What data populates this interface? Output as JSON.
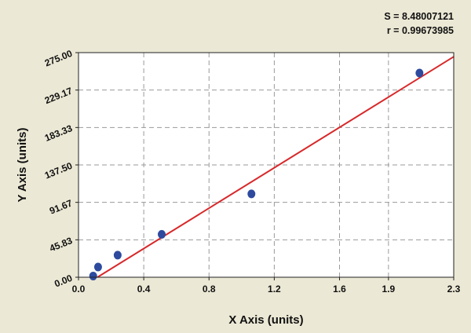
{
  "stats": {
    "s_line": "S = 8.48007121",
    "r_line": "r = 0.99673985"
  },
  "chart_data": {
    "type": "scatter",
    "xlabel": "X Axis (units)",
    "ylabel": "Y Axis (units)",
    "xlim": [
      0.0,
      2.3
    ],
    "ylim": [
      0.0,
      275.0
    ],
    "x_ticks": [
      0.0,
      0.4,
      0.8,
      1.2,
      1.6,
      1.9,
      2.3
    ],
    "x_tick_labels": [
      "0.0",
      "0.4",
      "0.8",
      "1.2",
      "1.6",
      "1.9",
      "2.3"
    ],
    "y_ticks": [
      0.0,
      45.83,
      91.67,
      137.5,
      183.33,
      229.17,
      275.0
    ],
    "y_tick_labels": [
      "0.00",
      "45.83",
      "91.67",
      "137.50",
      "183.33",
      "229.17",
      "275.00"
    ],
    "grid": true,
    "points": {
      "x": [
        0.09,
        0.12,
        0.24,
        0.51,
        1.06,
        2.09
      ],
      "y": [
        1.5,
        12.5,
        27.0,
        52.5,
        102.0,
        250.0
      ]
    },
    "fit_line": {
      "x": [
        0.09,
        2.3
      ],
      "y": [
        -3.2,
        270.0
      ]
    },
    "colors": {
      "background": "#ebe8d5",
      "plot_area": "#ffffff",
      "points": "#2d4a9e",
      "fit_line": "#d8282a",
      "grid": "#9a9a9a"
    }
  }
}
